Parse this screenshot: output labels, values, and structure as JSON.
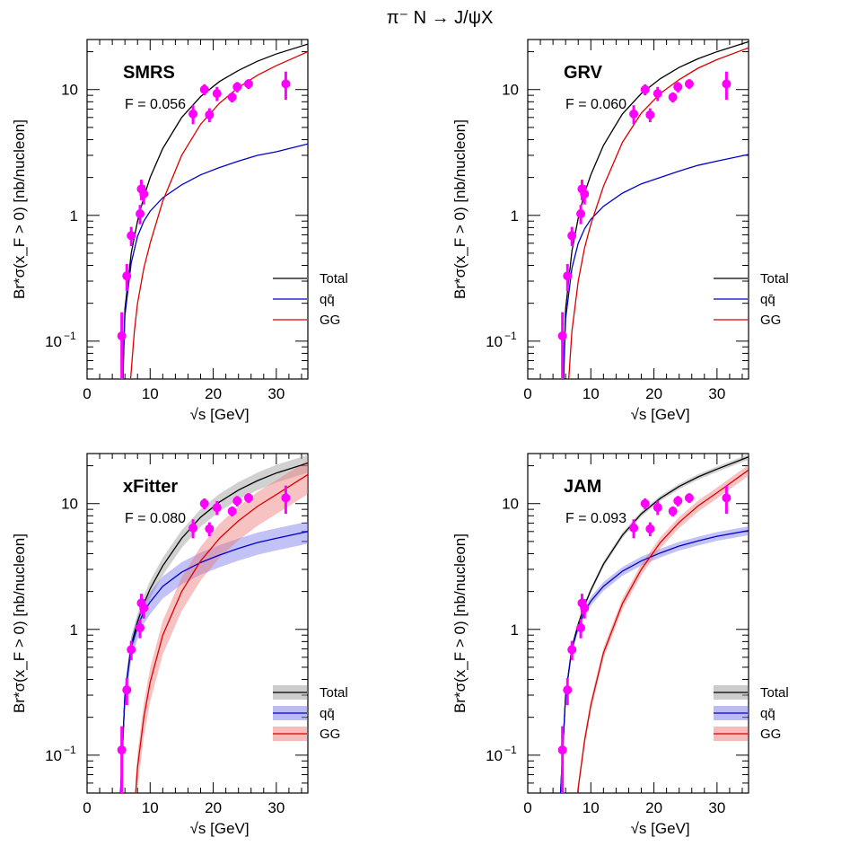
{
  "figure": {
    "title": "π⁻ N → J/ψX"
  },
  "chart_data": [
    {
      "type": "line",
      "panel": "SMRS",
      "annotation": "F = 0.056",
      "xlabel": "√s [GeV]",
      "ylabel": "Br*σ(x_F > 0) [nb/nucleon]",
      "xlim": [
        0,
        35
      ],
      "ylim": [
        0.05,
        25
      ],
      "yscale": "log",
      "x_ticks": [
        0,
        10,
        20,
        30
      ],
      "y_ticks": [
        "10^-1",
        "1",
        "10"
      ],
      "legend_position": "lower-right",
      "bands": false,
      "series": [
        {
          "name": "Total",
          "color": "#000000",
          "x": [
            5.7,
            6,
            7,
            8,
            9,
            10,
            12,
            15,
            18,
            21,
            24,
            27,
            30,
            35
          ],
          "y": [
            0.05,
            0.18,
            0.5,
            0.9,
            1.4,
            2.0,
            3.4,
            6.0,
            8.8,
            11.6,
            14.2,
            16.8,
            19.2,
            23.0
          ]
        },
        {
          "name": "qq̄",
          "color": "#0000cc",
          "x": [
            5.6,
            6,
            7,
            8,
            9,
            10,
            12,
            15,
            18,
            21,
            24,
            27,
            30,
            35
          ],
          "y": [
            0.05,
            0.16,
            0.42,
            0.68,
            0.9,
            1.08,
            1.38,
            1.75,
            2.1,
            2.4,
            2.7,
            3.0,
            3.2,
            3.7
          ]
        },
        {
          "name": "GG",
          "color": "#dd0000",
          "x": [
            6.9,
            7.5,
            8,
            9,
            10,
            12,
            15,
            18,
            21,
            24,
            27,
            30,
            35
          ],
          "y": [
            0.05,
            0.12,
            0.2,
            0.38,
            0.6,
            1.3,
            3.0,
            5.3,
            7.8,
            10.4,
            13.0,
            15.5,
            20.0
          ]
        }
      ],
      "data_points": {
        "color": "#ff00ff",
        "x": [
          5.5,
          6.3,
          7.0,
          8.4,
          8.6,
          9.0,
          16.8,
          18.6,
          19.4,
          20.6,
          23.0,
          23.8,
          25.6,
          31.5
        ],
        "y": [
          0.11,
          0.33,
          0.69,
          1.03,
          1.62,
          1.48,
          6.4,
          10.0,
          6.3,
          9.3,
          8.7,
          10.5,
          11.1,
          11.1
        ],
        "yerr_lo": [
          0.06,
          0.08,
          0.12,
          0.18,
          0.3,
          0.26,
          1.1,
          1.0,
          0.8,
          1.2,
          0.8,
          1.0,
          1.0,
          2.8
        ],
        "yerr_hi": [
          0.06,
          0.08,
          0.12,
          0.18,
          0.3,
          0.26,
          1.1,
          1.0,
          0.8,
          1.2,
          0.8,
          1.0,
          1.0,
          2.8
        ]
      }
    },
    {
      "type": "line",
      "panel": "GRV",
      "annotation": "F = 0.060",
      "xlabel": "√s [GeV]",
      "ylabel": "Br*σ(x_F > 0) [nb/nucleon]",
      "xlim": [
        0,
        35
      ],
      "ylim": [
        0.05,
        25
      ],
      "yscale": "log",
      "x_ticks": [
        0,
        10,
        20,
        30
      ],
      "y_ticks": [
        "10^-1",
        "1",
        "10"
      ],
      "legend_position": "lower-right",
      "bands": false,
      "series": [
        {
          "name": "Total",
          "color": "#000000",
          "x": [
            5.7,
            6,
            7,
            8,
            9,
            10,
            12,
            15,
            18,
            21,
            24,
            27,
            30,
            35
          ],
          "y": [
            0.05,
            0.18,
            0.52,
            0.95,
            1.5,
            2.1,
            3.6,
            6.4,
            9.3,
            12.2,
            15.0,
            17.6,
            20.0,
            24.0
          ]
        },
        {
          "name": "qq̄",
          "color": "#0000cc",
          "x": [
            5.6,
            6,
            7,
            8,
            9,
            10,
            12,
            15,
            18,
            21,
            24,
            27,
            30,
            35
          ],
          "y": [
            0.05,
            0.15,
            0.38,
            0.6,
            0.78,
            0.93,
            1.18,
            1.5,
            1.78,
            2.0,
            2.25,
            2.5,
            2.7,
            3.05
          ]
        },
        {
          "name": "GG",
          "color": "#dd0000",
          "x": [
            6.5,
            7,
            8,
            9,
            10,
            12,
            15,
            18,
            21,
            24,
            27,
            30,
            35
          ],
          "y": [
            0.05,
            0.12,
            0.3,
            0.55,
            0.85,
            1.7,
            3.8,
            6.5,
            9.3,
            12.0,
            14.8,
            17.3,
            21.5
          ]
        }
      ],
      "data_points": {
        "color": "#ff00ff",
        "x": [
          5.5,
          6.3,
          7.0,
          8.4,
          8.6,
          9.0,
          16.8,
          18.6,
          19.4,
          20.6,
          23.0,
          23.8,
          25.6,
          31.5
        ],
        "y": [
          0.11,
          0.33,
          0.69,
          1.03,
          1.62,
          1.48,
          6.4,
          10.0,
          6.3,
          9.3,
          8.7,
          10.5,
          11.1,
          11.1
        ],
        "yerr_lo": [
          0.06,
          0.08,
          0.12,
          0.18,
          0.3,
          0.26,
          1.1,
          1.0,
          0.8,
          1.2,
          0.8,
          1.0,
          1.0,
          2.8
        ],
        "yerr_hi": [
          0.06,
          0.08,
          0.12,
          0.18,
          0.3,
          0.26,
          1.1,
          1.0,
          0.8,
          1.2,
          0.8,
          1.0,
          1.0,
          2.8
        ]
      }
    },
    {
      "type": "line",
      "panel": "xFitter",
      "annotation": "F = 0.080",
      "xlabel": "√s [GeV]",
      "ylabel": "Br*σ(x_F > 0) [nb/nucleon]",
      "xlim": [
        0,
        35
      ],
      "ylim": [
        0.05,
        25
      ],
      "yscale": "log",
      "x_ticks": [
        0,
        10,
        20,
        30
      ],
      "y_ticks": [
        "10^-1",
        "1",
        "10"
      ],
      "legend_position": "lower-right",
      "bands": true,
      "series": [
        {
          "name": "Total",
          "color": "#000000",
          "band_color": "#999999",
          "x": [
            5.3,
            6,
            7,
            8,
            9,
            10,
            12,
            15,
            18,
            21,
            24,
            27,
            30,
            35
          ],
          "y": [
            0.05,
            0.3,
            0.75,
            1.15,
            1.6,
            2.1,
            3.2,
            5.3,
            7.8,
            10.3,
            12.8,
            15.2,
            17.5,
            21.0
          ],
          "band_rel": 0.16
        },
        {
          "name": "qq̄",
          "color": "#0000cc",
          "band_color": "#7777ee",
          "x": [
            5.3,
            6,
            7,
            8,
            9,
            10,
            12,
            15,
            18,
            21,
            24,
            27,
            30,
            35
          ],
          "y": [
            0.05,
            0.3,
            0.72,
            1.05,
            1.38,
            1.65,
            2.2,
            2.85,
            3.4,
            3.9,
            4.4,
            4.9,
            5.3,
            6.0
          ],
          "band_rel": 0.2
        },
        {
          "name": "GG",
          "color": "#dd0000",
          "band_color": "#ee7777",
          "x": [
            7.7,
            8,
            9,
            10,
            12,
            15,
            18,
            21,
            24,
            27,
            30,
            35
          ],
          "y": [
            0.05,
            0.08,
            0.2,
            0.38,
            0.9,
            2.0,
            3.5,
            5.3,
            7.3,
            9.5,
            11.8,
            17.0
          ],
          "band_rel": 0.3
        }
      ],
      "data_points": {
        "color": "#ff00ff",
        "x": [
          5.5,
          6.3,
          7.0,
          8.4,
          8.6,
          9.0,
          16.8,
          18.6,
          19.4,
          20.6,
          23.0,
          23.8,
          25.6,
          31.5
        ],
        "y": [
          0.11,
          0.33,
          0.69,
          1.03,
          1.62,
          1.48,
          6.4,
          10.0,
          6.3,
          9.3,
          8.7,
          10.5,
          11.1,
          11.1
        ],
        "yerr_lo": [
          0.06,
          0.08,
          0.12,
          0.18,
          0.3,
          0.26,
          1.1,
          1.0,
          0.8,
          1.2,
          0.8,
          1.0,
          1.0,
          2.8
        ],
        "yerr_hi": [
          0.06,
          0.08,
          0.12,
          0.18,
          0.3,
          0.26,
          1.1,
          1.0,
          0.8,
          1.2,
          0.8,
          1.0,
          1.0,
          2.8
        ]
      }
    },
    {
      "type": "line",
      "panel": "JAM",
      "annotation": "F = 0.093",
      "xlabel": "√s [GeV]",
      "ylabel": "Br*σ(x_F > 0) [nb/nucleon]",
      "xlim": [
        0,
        35
      ],
      "ylim": [
        0.05,
        25
      ],
      "yscale": "log",
      "x_ticks": [
        0,
        10,
        20,
        30
      ],
      "y_ticks": [
        "10^-1",
        "1",
        "10"
      ],
      "legend_position": "lower-right",
      "bands": true,
      "series": [
        {
          "name": "Total",
          "color": "#000000",
          "band_color": "#999999",
          "x": [
            5.2,
            6,
            7,
            8,
            9,
            10,
            12,
            15,
            18,
            21,
            24,
            27,
            30,
            35
          ],
          "y": [
            0.05,
            0.3,
            0.72,
            1.1,
            1.55,
            2.05,
            3.3,
            5.6,
            8.3,
            11.0,
            13.7,
            16.3,
            18.8,
            23.5
          ],
          "band_rel": 0.05
        },
        {
          "name": "qq̄",
          "color": "#0000cc",
          "band_color": "#7777ee",
          "x": [
            5.2,
            6,
            7,
            8,
            9,
            10,
            12,
            15,
            18,
            21,
            24,
            27,
            30,
            35
          ],
          "y": [
            0.05,
            0.3,
            0.7,
            1.05,
            1.38,
            1.68,
            2.2,
            2.9,
            3.5,
            4.05,
            4.6,
            5.05,
            5.5,
            6.1
          ],
          "band_rel": 0.08
        },
        {
          "name": "GG",
          "color": "#dd0000",
          "band_color": "#ee7777",
          "x": [
            7.9,
            8,
            9,
            10,
            12,
            15,
            18,
            21,
            24,
            27,
            30,
            35
          ],
          "y": [
            0.05,
            0.055,
            0.13,
            0.25,
            0.65,
            1.6,
            3.0,
            4.9,
            7.1,
            9.6,
            12.2,
            18.5
          ],
          "band_rel": 0.1
        }
      ],
      "data_points": {
        "color": "#ff00ff",
        "x": [
          5.5,
          6.3,
          7.0,
          8.4,
          8.6,
          9.0,
          16.8,
          18.6,
          19.4,
          20.6,
          23.0,
          23.8,
          25.6,
          31.5
        ],
        "y": [
          0.11,
          0.33,
          0.69,
          1.03,
          1.62,
          1.48,
          6.4,
          10.0,
          6.3,
          9.3,
          8.7,
          10.5,
          11.1,
          11.1
        ],
        "yerr_lo": [
          0.06,
          0.08,
          0.12,
          0.18,
          0.3,
          0.26,
          1.1,
          1.0,
          0.8,
          1.2,
          0.8,
          1.0,
          1.0,
          2.8
        ],
        "yerr_hi": [
          0.06,
          0.08,
          0.12,
          0.18,
          0.3,
          0.26,
          1.1,
          1.0,
          0.8,
          1.2,
          0.8,
          1.0,
          1.0,
          2.8
        ]
      }
    }
  ]
}
